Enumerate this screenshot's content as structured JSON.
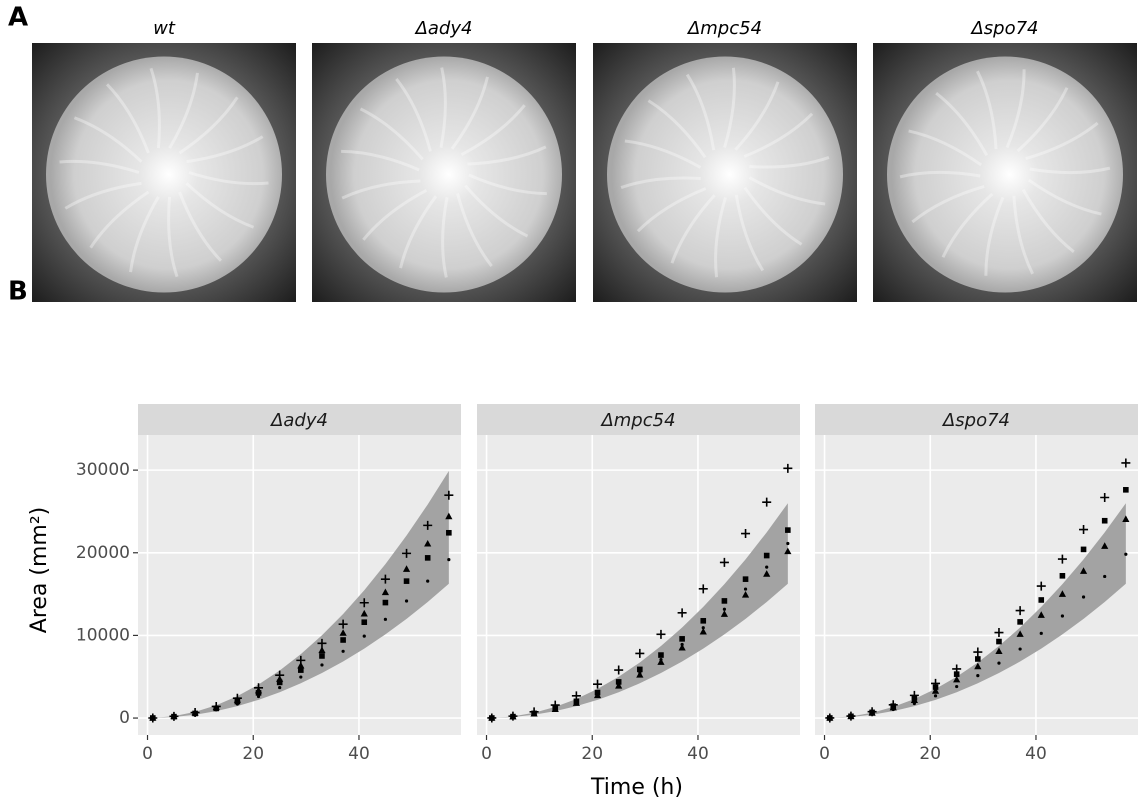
{
  "panel_a": {
    "label": "A",
    "captions": [
      "wt",
      "Δady4",
      "Δmpc54",
      "Δspo74"
    ]
  },
  "panel_b": {
    "label": "B",
    "xlabel": "Time (h)",
    "ylabel": "Area (mm²)"
  },
  "chart_data": [
    {
      "type": "scatter",
      "title": "Δady4",
      "show_yticklabels": true,
      "x": [
        1,
        5,
        9,
        13,
        17,
        21,
        25,
        29,
        33,
        37,
        41,
        45,
        49,
        53,
        57
      ],
      "xlim": [
        -1.8,
        59.3
      ],
      "xticks": [
        0,
        20,
        40
      ],
      "ylim": [
        -2050,
        34250
      ],
      "yticks": [
        0,
        10000,
        20000,
        30000
      ],
      "grid": true,
      "band": {
        "color": "#a3a3a3",
        "lower": [
          5,
          125,
          405,
          845,
          1445,
          2205,
          3125,
          4205,
          5445,
          6845,
          8405,
          10125,
          12005,
          14045,
          16245
        ],
        "upper": [
          9,
          230,
          745,
          1555,
          2659,
          4057,
          5750,
          7737,
          10019,
          12595,
          15465,
          18630,
          22089,
          25843,
          29891
        ]
      },
      "series": [
        {
          "marker": "cross",
          "color": "#000000",
          "values": [
            8,
            208,
            672,
            1403,
            2399,
            3660,
            5188,
            6980,
            9039,
            11363,
            13952,
            16808,
            19928,
            23315,
            26967
          ]
        },
        {
          "marker": "square",
          "color": "#000000",
          "values": [
            7,
            173,
            559,
            1166,
            1994,
            3043,
            4313,
            5803,
            7514,
            9446,
            11599,
            13973,
            16567,
            19382,
            22418
          ]
        },
        {
          "marker": "triangle",
          "color": "#000000",
          "values": [
            8,
            188,
            608,
            1268,
            2168,
            3308,
            4688,
            6308,
            8168,
            10268,
            12608,
            15188,
            18008,
            21068,
            24368
          ]
        },
        {
          "marker": "dot",
          "color": "#000000",
          "values": [
            6,
            148,
            478,
            997,
            1705,
            2602,
            3688,
            4962,
            6425,
            8077,
            9918,
            11948,
            14166,
            16573,
            19169
          ]
        }
      ]
    },
    {
      "type": "scatter",
      "title": "Δmpc54",
      "show_yticklabels": false,
      "x": [
        1,
        5,
        9,
        13,
        17,
        21,
        25,
        29,
        33,
        37,
        41,
        45,
        49,
        53,
        57
      ],
      "xlim": [
        -1.8,
        59.3
      ],
      "xticks": [
        0,
        20,
        40
      ],
      "ylim": [
        -2050,
        34250
      ],
      "yticks": [
        0,
        10000,
        20000,
        30000
      ],
      "grid": true,
      "band": {
        "color": "#a3a3a3",
        "lower": [
          5,
          125,
          405,
          845,
          1445,
          2205,
          3125,
          4205,
          5445,
          6845,
          8405,
          10125,
          12005,
          14045,
          16245
        ],
        "upper": [
          8,
          200,
          648,
          1352,
          2312,
          3528,
          5000,
          6728,
          8712,
          10952,
          13448,
          16200,
          19208,
          22472,
          25992
        ]
      },
      "series": [
        {
          "marker": "cross",
          "color": "#000000",
          "values": [
            9,
            233,
            753,
            1572,
            2688,
            4101,
            5813,
            7821,
            10128,
            12732,
            15633,
            18833,
            22329,
            26124,
            30216
          ]
        },
        {
          "marker": "square",
          "color": "#000000",
          "values": [
            7,
            175,
            567,
            1183,
            2023,
            3087,
            4375,
            5887,
            7623,
            9583,
            11767,
            14175,
            16807,
            19663,
            22743
          ]
        },
        {
          "marker": "triangle",
          "color": "#000000",
          "values": [
            6,
            155,
            502,
            1048,
            1792,
            2734,
            3875,
            5214,
            6752,
            8488,
            10422,
            12555,
            14886,
            17416,
            20144
          ]
        },
        {
          "marker": "dot",
          "color": "#000000",
          "values": [
            7,
            163,
            527,
            1099,
            1879,
            2867,
            4063,
            5467,
            7079,
            8899,
            10927,
            13163,
            15607,
            18259,
            21119
          ]
        }
      ]
    },
    {
      "type": "scatter",
      "title": "Δspo74",
      "show_yticklabels": false,
      "x": [
        1,
        5,
        9,
        13,
        17,
        21,
        25,
        29,
        33,
        37,
        41,
        45,
        49,
        53,
        57
      ],
      "xlim": [
        -1.8,
        59.3
      ],
      "xticks": [
        0,
        20,
        40
      ],
      "ylim": [
        -2050,
        34250
      ],
      "yticks": [
        0,
        10000,
        20000,
        30000
      ],
      "grid": true,
      "band": {
        "color": "#a3a3a3",
        "lower": [
          5,
          125,
          405,
          845,
          1445,
          2205,
          3125,
          4205,
          5445,
          6845,
          8405,
          10125,
          12005,
          14045,
          16245
        ],
        "upper": [
          8,
          200,
          648,
          1352,
          2312,
          3528,
          5000,
          6728,
          8712,
          10952,
          13448,
          16200,
          19208,
          22472,
          25992
        ]
      },
      "series": [
        {
          "marker": "cross",
          "color": "#000000",
          "values": [
            10,
            238,
            770,
            1606,
            2746,
            4190,
            5938,
            7990,
            10346,
            13006,
            15970,
            19238,
            22810,
            26686,
            30866
          ]
        },
        {
          "marker": "square",
          "color": "#000000",
          "values": [
            9,
            213,
            689,
            1437,
            2457,
            3749,
            5313,
            7149,
            9257,
            11637,
            14289,
            17213,
            20409,
            23877,
            27617
          ]
        },
        {
          "marker": "triangle",
          "color": "#000000",
          "values": [
            7,
            185,
            599,
            1251,
            2139,
            3263,
            4625,
            6223,
            8059,
            10131,
            12439,
            14985,
            17767,
            20787,
            24043
          ]
        },
        {
          "marker": "dot",
          "color": "#000000",
          "values": [
            6,
            153,
            494,
            1031,
            1763,
            2690,
            3813,
            5130,
            6643,
            8351,
            10254,
            12353,
            14646,
            17135,
            19819
          ]
        }
      ]
    }
  ]
}
